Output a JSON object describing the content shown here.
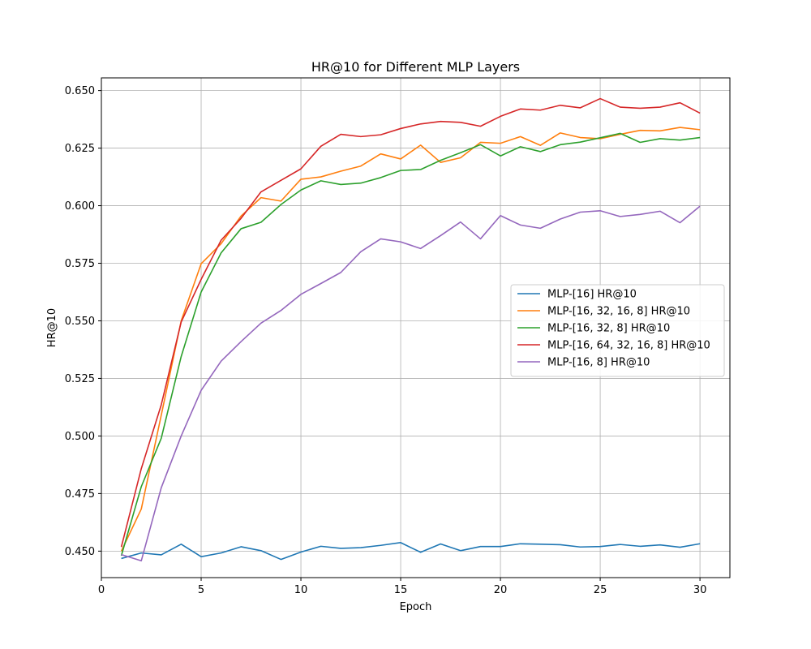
{
  "chart_data": {
    "type": "line",
    "title": "HR@10 for Different MLP Layers",
    "xlabel": "Epoch",
    "ylabel": "HR@10",
    "xlim": [
      0,
      31.5
    ],
    "ylim": [
      0.4385,
      0.6555
    ],
    "xticks": [
      0,
      5,
      10,
      15,
      20,
      25,
      30
    ],
    "yticks": [
      0.45,
      0.475,
      0.5,
      0.525,
      0.55,
      0.575,
      0.6,
      0.625,
      0.65
    ],
    "grid": true,
    "legend_position": "center-right",
    "x": [
      1,
      2,
      3,
      4,
      5,
      6,
      7,
      8,
      9,
      10,
      11,
      12,
      13,
      14,
      15,
      16,
      17,
      18,
      19,
      20,
      21,
      22,
      23,
      24,
      25,
      26,
      27,
      28,
      29,
      30
    ],
    "series": [
      {
        "name": "MLP-[16] HR@10",
        "color": "#1f77b4",
        "values": [
          0.4468,
          0.4492,
          0.4484,
          0.453,
          0.4476,
          0.4492,
          0.4519,
          0.4502,
          0.4464,
          0.4496,
          0.4521,
          0.4512,
          0.4515,
          0.4525,
          0.4537,
          0.4495,
          0.4531,
          0.4502,
          0.452,
          0.452,
          0.4532,
          0.453,
          0.4528,
          0.4518,
          0.452,
          0.4529,
          0.4521,
          0.4527,
          0.4517,
          0.4532
        ]
      },
      {
        "name": "MLP-[16, 32, 16, 8] HR@10",
        "color": "#ff7f0e",
        "values": [
          0.45,
          0.4683,
          0.509,
          0.55,
          0.5748,
          0.5835,
          0.5955,
          0.6035,
          0.602,
          0.6115,
          0.6125,
          0.615,
          0.6172,
          0.6225,
          0.6203,
          0.6263,
          0.6188,
          0.6208,
          0.6275,
          0.6271,
          0.63,
          0.6262,
          0.6316,
          0.6296,
          0.6291,
          0.631,
          0.6327,
          0.6325,
          0.634,
          0.633
        ]
      },
      {
        "name": "MLP-[16, 32, 8] HR@10",
        "color": "#2ca02c",
        "values": [
          0.448,
          0.478,
          0.499,
          0.5345,
          0.5625,
          0.5795,
          0.59,
          0.5928,
          0.6005,
          0.6068,
          0.6108,
          0.6092,
          0.6098,
          0.6122,
          0.6153,
          0.6157,
          0.6197,
          0.623,
          0.6265,
          0.6216,
          0.6256,
          0.6235,
          0.6265,
          0.6276,
          0.6295,
          0.6314,
          0.6275,
          0.6291,
          0.6285,
          0.6296
        ]
      },
      {
        "name": "MLP-[16, 64, 32, 16, 8] HR@10",
        "color": "#d62728",
        "values": [
          0.4518,
          0.4858,
          0.5135,
          0.5495,
          0.568,
          0.585,
          0.5945,
          0.606,
          0.611,
          0.616,
          0.6258,
          0.631,
          0.63,
          0.6308,
          0.6335,
          0.6355,
          0.6366,
          0.6362,
          0.6345,
          0.6388,
          0.642,
          0.6415,
          0.6436,
          0.6425,
          0.6465,
          0.6428,
          0.6423,
          0.6428,
          0.6447,
          0.6402
        ]
      },
      {
        "name": "MLP-[16, 8] HR@10",
        "color": "#9467bd",
        "values": [
          0.4485,
          0.4458,
          0.4775,
          0.5,
          0.5198,
          0.5325,
          0.541,
          0.549,
          0.5545,
          0.5615,
          0.5662,
          0.571,
          0.58,
          0.5856,
          0.5843,
          0.5814,
          0.587,
          0.5929,
          0.5856,
          0.5957,
          0.5916,
          0.5902,
          0.5942,
          0.5972,
          0.5978,
          0.5953,
          0.5962,
          0.5976,
          0.5926,
          0.5998
        ]
      }
    ]
  }
}
